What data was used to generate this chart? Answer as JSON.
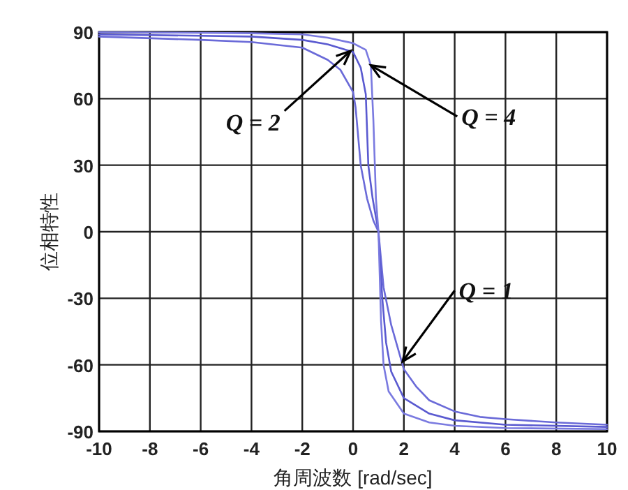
{
  "chart_data": {
    "type": "line",
    "xlabel": "角周波数 [rad/sec]",
    "ylabel": "位相特性",
    "xlim": [
      -10,
      10
    ],
    "ylim": [
      -90,
      90
    ],
    "xticks": [
      -10,
      -8,
      -6,
      -4,
      -2,
      0,
      2,
      4,
      6,
      8,
      10
    ],
    "yticks": [
      -90,
      -60,
      -30,
      0,
      30,
      60,
      90
    ],
    "grid": true,
    "line_style": "solid",
    "marker": "none",
    "series": [
      {
        "color": "#6a6ad8",
        "x": [
          -10,
          -6,
          -4,
          -2,
          -1,
          -0.5,
          0,
          0.1,
          0.3,
          0.55,
          0.8,
          1,
          1.2,
          1.5,
          2,
          2.5,
          3,
          4,
          5,
          6,
          8,
          10
        ],
        "values": [
          88,
          86.5,
          85.5,
          83,
          77.5,
          73,
          63,
          56,
          30,
          15,
          5,
          0,
          -25,
          -42,
          -62,
          -70,
          -76,
          -81,
          -83.5,
          -84.5,
          -86,
          -87
        ]
      },
      {
        "color": "#5a5ad0",
        "x": [
          -10,
          -4,
          -2,
          -1,
          0,
          0.3,
          0.5,
          0.6,
          0.77,
          1,
          1.15,
          1.3,
          1.5,
          2,
          3,
          4,
          6,
          10
        ],
        "values": [
          89,
          88,
          86.5,
          84.5,
          81,
          74,
          62,
          30,
          15,
          0,
          -30,
          -50,
          -63,
          -75,
          -82,
          -85,
          -87,
          -88
        ]
      },
      {
        "color": "#7a7ae0",
        "x": [
          -10,
          -4,
          -2,
          -1,
          0,
          0.5,
          0.7,
          0.8,
          0.9,
          1,
          1.1,
          1.2,
          1.4,
          2,
          3,
          4,
          6,
          10
        ],
        "values": [
          90,
          89.5,
          89,
          87.5,
          85,
          82,
          75,
          50,
          15,
          0,
          -40,
          -60,
          -72,
          -82,
          -86,
          -87.5,
          -88.5,
          -89
        ]
      }
    ],
    "annotations": [
      {
        "text": "Q = 2",
        "x": -0.1,
        "y": 81.5
      },
      {
        "text": "Q = 4",
        "x": 0.7,
        "y": 75
      },
      {
        "text": "Q = 1",
        "x": 1.95,
        "y": -58.5
      }
    ]
  }
}
